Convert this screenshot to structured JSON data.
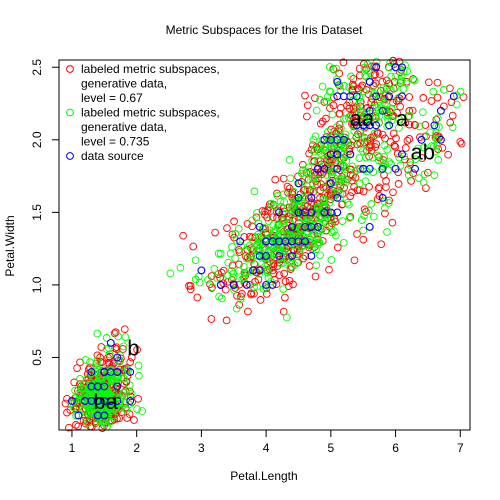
{
  "chart_data": {
    "type": "scatter",
    "title": "Metric Subspaces for the Iris Dataset",
    "xlabel": "Petal.Length",
    "ylabel": "Petal.Width",
    "xlim": [
      0.8,
      7.15
    ],
    "ylim": [
      0.0,
      2.55
    ],
    "xticks": [
      "1",
      "2",
      "3",
      "4",
      "5",
      "6",
      "7"
    ],
    "yticks": [
      "0.5",
      "1.0",
      "1.5",
      "2.0",
      "2.5"
    ],
    "xtick_values": [
      1,
      2,
      3,
      4,
      5,
      6,
      7
    ],
    "ytick_values": [
      0.5,
      1.0,
      1.5,
      2.0,
      2.5
    ],
    "grid": false,
    "legend_position": "top-left",
    "series": [
      {
        "label": "labeled metric subspaces,\ngenerative data,\nlevel = 0.67",
        "color": "#FF0000"
      },
      {
        "label": "labeled metric subspaces,\ngenerative data,\nlevel = 0.735",
        "color": "#00FF00"
      },
      {
        "label": "data source",
        "color": "#0000FF",
        "points": [
          [
            1.4,
            0.2
          ],
          [
            1.4,
            0.2
          ],
          [
            1.3,
            0.2
          ],
          [
            1.5,
            0.2
          ],
          [
            1.4,
            0.2
          ],
          [
            1.7,
            0.4
          ],
          [
            1.4,
            0.3
          ],
          [
            1.5,
            0.2
          ],
          [
            1.4,
            0.2
          ],
          [
            1.5,
            0.1
          ],
          [
            1.5,
            0.2
          ],
          [
            1.6,
            0.2
          ],
          [
            1.4,
            0.1
          ],
          [
            1.1,
            0.1
          ],
          [
            1.2,
            0.2
          ],
          [
            1.5,
            0.4
          ],
          [
            1.3,
            0.4
          ],
          [
            1.4,
            0.3
          ],
          [
            1.7,
            0.3
          ],
          [
            1.5,
            0.3
          ],
          [
            1.7,
            0.2
          ],
          [
            1.5,
            0.4
          ],
          [
            1.0,
            0.2
          ],
          [
            1.7,
            0.5
          ],
          [
            1.9,
            0.2
          ],
          [
            1.6,
            0.2
          ],
          [
            1.6,
            0.4
          ],
          [
            1.5,
            0.2
          ],
          [
            1.4,
            0.2
          ],
          [
            1.6,
            0.2
          ],
          [
            1.6,
            0.2
          ],
          [
            1.5,
            0.4
          ],
          [
            1.5,
            0.1
          ],
          [
            1.4,
            0.2
          ],
          [
            1.5,
            0.2
          ],
          [
            1.2,
            0.2
          ],
          [
            1.3,
            0.2
          ],
          [
            1.4,
            0.1
          ],
          [
            1.3,
            0.2
          ],
          [
            1.5,
            0.2
          ],
          [
            1.3,
            0.3
          ],
          [
            1.3,
            0.3
          ],
          [
            1.3,
            0.2
          ],
          [
            1.6,
            0.6
          ],
          [
            1.9,
            0.4
          ],
          [
            1.4,
            0.3
          ],
          [
            1.6,
            0.2
          ],
          [
            1.4,
            0.2
          ],
          [
            1.5,
            0.2
          ],
          [
            1.4,
            0.2
          ],
          [
            4.7,
            1.4
          ],
          [
            4.5,
            1.5
          ],
          [
            4.9,
            1.5
          ],
          [
            4.0,
            1.3
          ],
          [
            4.6,
            1.5
          ],
          [
            4.5,
            1.3
          ],
          [
            4.7,
            1.6
          ],
          [
            3.3,
            1.0
          ],
          [
            4.6,
            1.3
          ],
          [
            3.9,
            1.4
          ],
          [
            3.5,
            1.0
          ],
          [
            4.2,
            1.5
          ],
          [
            4.0,
            1.0
          ],
          [
            4.7,
            1.4
          ],
          [
            3.6,
            1.3
          ],
          [
            4.4,
            1.4
          ],
          [
            4.5,
            1.5
          ],
          [
            4.1,
            1.0
          ],
          [
            4.5,
            1.5
          ],
          [
            3.9,
            1.1
          ],
          [
            4.8,
            1.8
          ],
          [
            4.0,
            1.3
          ],
          [
            4.9,
            1.5
          ],
          [
            4.7,
            1.2
          ],
          [
            4.3,
            1.3
          ],
          [
            4.4,
            1.4
          ],
          [
            4.8,
            1.4
          ],
          [
            5.0,
            1.7
          ],
          [
            4.5,
            1.5
          ],
          [
            3.5,
            1.0
          ],
          [
            3.8,
            1.1
          ],
          [
            3.7,
            1.0
          ],
          [
            3.9,
            1.2
          ],
          [
            5.1,
            1.6
          ],
          [
            4.5,
            1.5
          ],
          [
            4.5,
            1.6
          ],
          [
            4.7,
            1.5
          ],
          [
            4.4,
            1.3
          ],
          [
            4.1,
            1.3
          ],
          [
            4.0,
            1.3
          ],
          [
            4.4,
            1.2
          ],
          [
            4.6,
            1.4
          ],
          [
            4.0,
            1.2
          ],
          [
            3.3,
            1.0
          ],
          [
            4.2,
            1.3
          ],
          [
            4.2,
            1.2
          ],
          [
            4.2,
            1.3
          ],
          [
            4.3,
            1.3
          ],
          [
            3.0,
            1.1
          ],
          [
            4.1,
            1.3
          ],
          [
            6.0,
            2.5
          ],
          [
            5.1,
            1.9
          ],
          [
            5.9,
            2.1
          ],
          [
            5.6,
            1.8
          ],
          [
            5.8,
            2.2
          ],
          [
            6.6,
            2.1
          ],
          [
            4.5,
            1.7
          ],
          [
            6.3,
            1.8
          ],
          [
            5.8,
            1.8
          ],
          [
            6.1,
            2.5
          ],
          [
            5.1,
            2.0
          ],
          [
            5.3,
            1.9
          ],
          [
            5.5,
            2.1
          ],
          [
            5.0,
            2.0
          ],
          [
            5.1,
            2.4
          ],
          [
            5.3,
            2.3
          ],
          [
            5.5,
            1.8
          ],
          [
            6.7,
            2.2
          ],
          [
            6.9,
            2.3
          ],
          [
            5.0,
            1.5
          ],
          [
            5.7,
            2.3
          ],
          [
            4.9,
            2.0
          ],
          [
            6.7,
            2.0
          ],
          [
            4.9,
            1.8
          ],
          [
            5.7,
            2.1
          ],
          [
            6.0,
            1.8
          ],
          [
            4.8,
            1.8
          ],
          [
            4.9,
            1.8
          ],
          [
            5.6,
            2.1
          ],
          [
            5.8,
            1.6
          ],
          [
            6.1,
            1.9
          ],
          [
            6.4,
            2.0
          ],
          [
            5.6,
            2.2
          ],
          [
            5.1,
            1.5
          ],
          [
            5.6,
            1.4
          ],
          [
            6.1,
            2.3
          ],
          [
            5.6,
            2.4
          ],
          [
            5.5,
            1.8
          ],
          [
            4.8,
            1.8
          ],
          [
            5.4,
            2.1
          ],
          [
            5.6,
            2.4
          ],
          [
            5.1,
            2.3
          ],
          [
            5.1,
            1.9
          ],
          [
            5.9,
            2.3
          ],
          [
            5.7,
            2.5
          ],
          [
            5.2,
            2.3
          ],
          [
            5.0,
            1.9
          ],
          [
            5.2,
            2.0
          ],
          [
            5.4,
            2.3
          ],
          [
            5.1,
            1.8
          ]
        ]
      }
    ],
    "annotations": [
      {
        "text": "b",
        "x": 1.95,
        "y": 0.57
      },
      {
        "text": "ba",
        "x": 1.52,
        "y": 0.2
      },
      {
        "text": "aa",
        "x": 5.48,
        "y": 2.15
      },
      {
        "text": "a",
        "x": 6.1,
        "y": 2.15
      },
      {
        "text": "ab",
        "x": 6.42,
        "y": 1.92
      }
    ]
  }
}
